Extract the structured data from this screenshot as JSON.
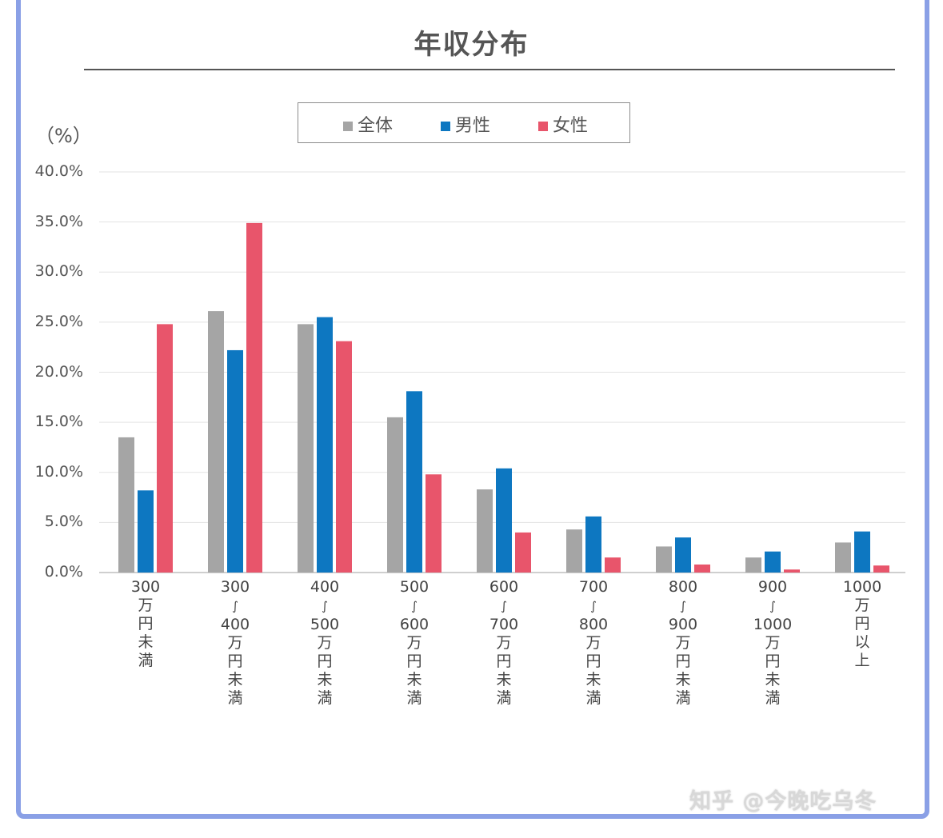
{
  "chart_data": {
    "type": "bar",
    "title": "年収分布",
    "unit_label": "（%）",
    "ylim": [
      0,
      40
    ],
    "yticks": [
      "40.0%",
      "35.0%",
      "30.0%",
      "25.0%",
      "20.0%",
      "15.0%",
      "10.0%",
      "5.0%",
      "0.0%"
    ],
    "categories": [
      [
        "300",
        "万",
        "円",
        "未",
        "満"
      ],
      [
        "300",
        "∫",
        "400",
        "万",
        "円",
        "未",
        "満"
      ],
      [
        "400",
        "∫",
        "500",
        "万",
        "円",
        "未",
        "満"
      ],
      [
        "500",
        "∫",
        "600",
        "万",
        "円",
        "未",
        "満"
      ],
      [
        "600",
        "∫",
        "700",
        "万",
        "円",
        "未",
        "満"
      ],
      [
        "700",
        "∫",
        "800",
        "万",
        "円",
        "未",
        "満"
      ],
      [
        "800",
        "∫",
        "900",
        "万",
        "円",
        "未",
        "満"
      ],
      [
        "900",
        "∫",
        "1000",
        "万",
        "円",
        "未",
        "満"
      ],
      [
        "1000",
        "万",
        "円",
        "以",
        "上"
      ]
    ],
    "series": [
      {
        "name": "全体",
        "color": "#a5a5a5",
        "values": [
          13.5,
          26.1,
          24.8,
          15.5,
          8.3,
          4.3,
          2.6,
          1.5,
          3.0
        ]
      },
      {
        "name": "男性",
        "color": "#0d77c1",
        "values": [
          8.2,
          22.2,
          25.5,
          18.1,
          10.4,
          5.6,
          3.5,
          2.1,
          4.1
        ]
      },
      {
        "name": "女性",
        "color": "#e8556b",
        "values": [
          24.8,
          34.9,
          23.1,
          9.8,
          4.0,
          1.5,
          0.8,
          0.3,
          0.7
        ]
      }
    ],
    "legend_position": "top-center",
    "grid": true
  },
  "watermark": "知乎 @今晚吃乌冬"
}
